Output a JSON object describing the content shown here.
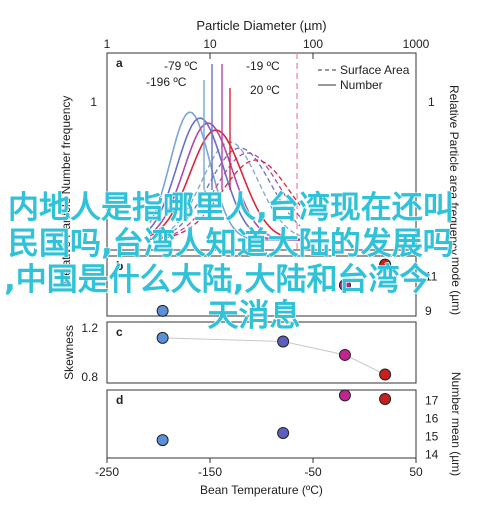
{
  "chart_data": [
    {
      "panel": "a",
      "type": "line",
      "title": "Particle Diameter (µm)",
      "top_ticks": [
        "1",
        "10",
        "100",
        "1000"
      ],
      "ylabel_left": "Relative Particle Number frequency",
      "ylabel_right": "Relative Particle area frequency",
      "left_ticks": [
        "1"
      ],
      "right_ticks": [
        "1"
      ],
      "legend": [
        "Surface Area",
        "Number"
      ],
      "annotations": [
        "-79 ºC",
        "-196 ºC",
        "-19 ºC",
        "20 ºC"
      ],
      "series": [
        {
          "label": "-196 ºC",
          "color": "#7aa6d6"
        },
        {
          "label": "-79 ºC",
          "color": "#6a70c8"
        },
        {
          "label": "-19 ºC",
          "color": "#b04aa8"
        },
        {
          "label": "20 ºC",
          "color": "#d6283e"
        }
      ],
      "vertical_marker": {
        "x": 70,
        "style": "dashed",
        "color": "#f08aa2"
      }
    },
    {
      "panel": "b",
      "type": "scatter",
      "ylabel_right": "mode (µm)",
      "right_ticks": [
        "11",
        "9"
      ],
      "points": [
        {
          "x": -196,
          "y": 9.0,
          "color": "#5b8fd8"
        },
        {
          "x": -19,
          "y": 10.5,
          "color": "#c2238f"
        },
        {
          "x": 20,
          "y": 11.7,
          "color": "#c8201c"
        }
      ]
    },
    {
      "panel": "c",
      "type": "scatter",
      "ylabel_left": "Skewness",
      "left_ticks": [
        "1.2",
        "0.8"
      ],
      "ylim": [
        0.75,
        1.25
      ],
      "points": [
        {
          "x": -196,
          "y": 1.12,
          "color": "#5b8fd8"
        },
        {
          "x": -79,
          "y": 1.09,
          "color": "#5b5fc0"
        },
        {
          "x": -19,
          "y": 0.98,
          "color": "#c2238f"
        },
        {
          "x": 20,
          "y": 0.82,
          "color": "#c8201c"
        }
      ]
    },
    {
      "panel": "d",
      "type": "scatter",
      "xlabel": "Bean Temperature (ºC)",
      "x_ticks": [
        "-250",
        "-150",
        "-50",
        "50"
      ],
      "xlim": [
        -250,
        50
      ],
      "ylabel_right": "Number mean (µm)",
      "right_ticks": [
        "17",
        "16",
        "15",
        "14"
      ],
      "ylim": [
        13.8,
        17.6
      ],
      "points": [
        {
          "x": -196,
          "y": 14.8,
          "color": "#5b8fd8"
        },
        {
          "x": -79,
          "y": 15.2,
          "color": "#5b5fc0"
        },
        {
          "x": -19,
          "y": 17.3,
          "color": "#c2238f"
        },
        {
          "x": 20,
          "y": 17.1,
          "color": "#c8201c"
        }
      ]
    }
  ],
  "overlay": {
    "line1": "内地人是指哪里人,台湾现在还叫",
    "line2": "民国吗,台湾人知道大陆的发展吗",
    "line3": ",中国是什么大陆,大陆和台湾今",
    "line4": "天消息"
  }
}
